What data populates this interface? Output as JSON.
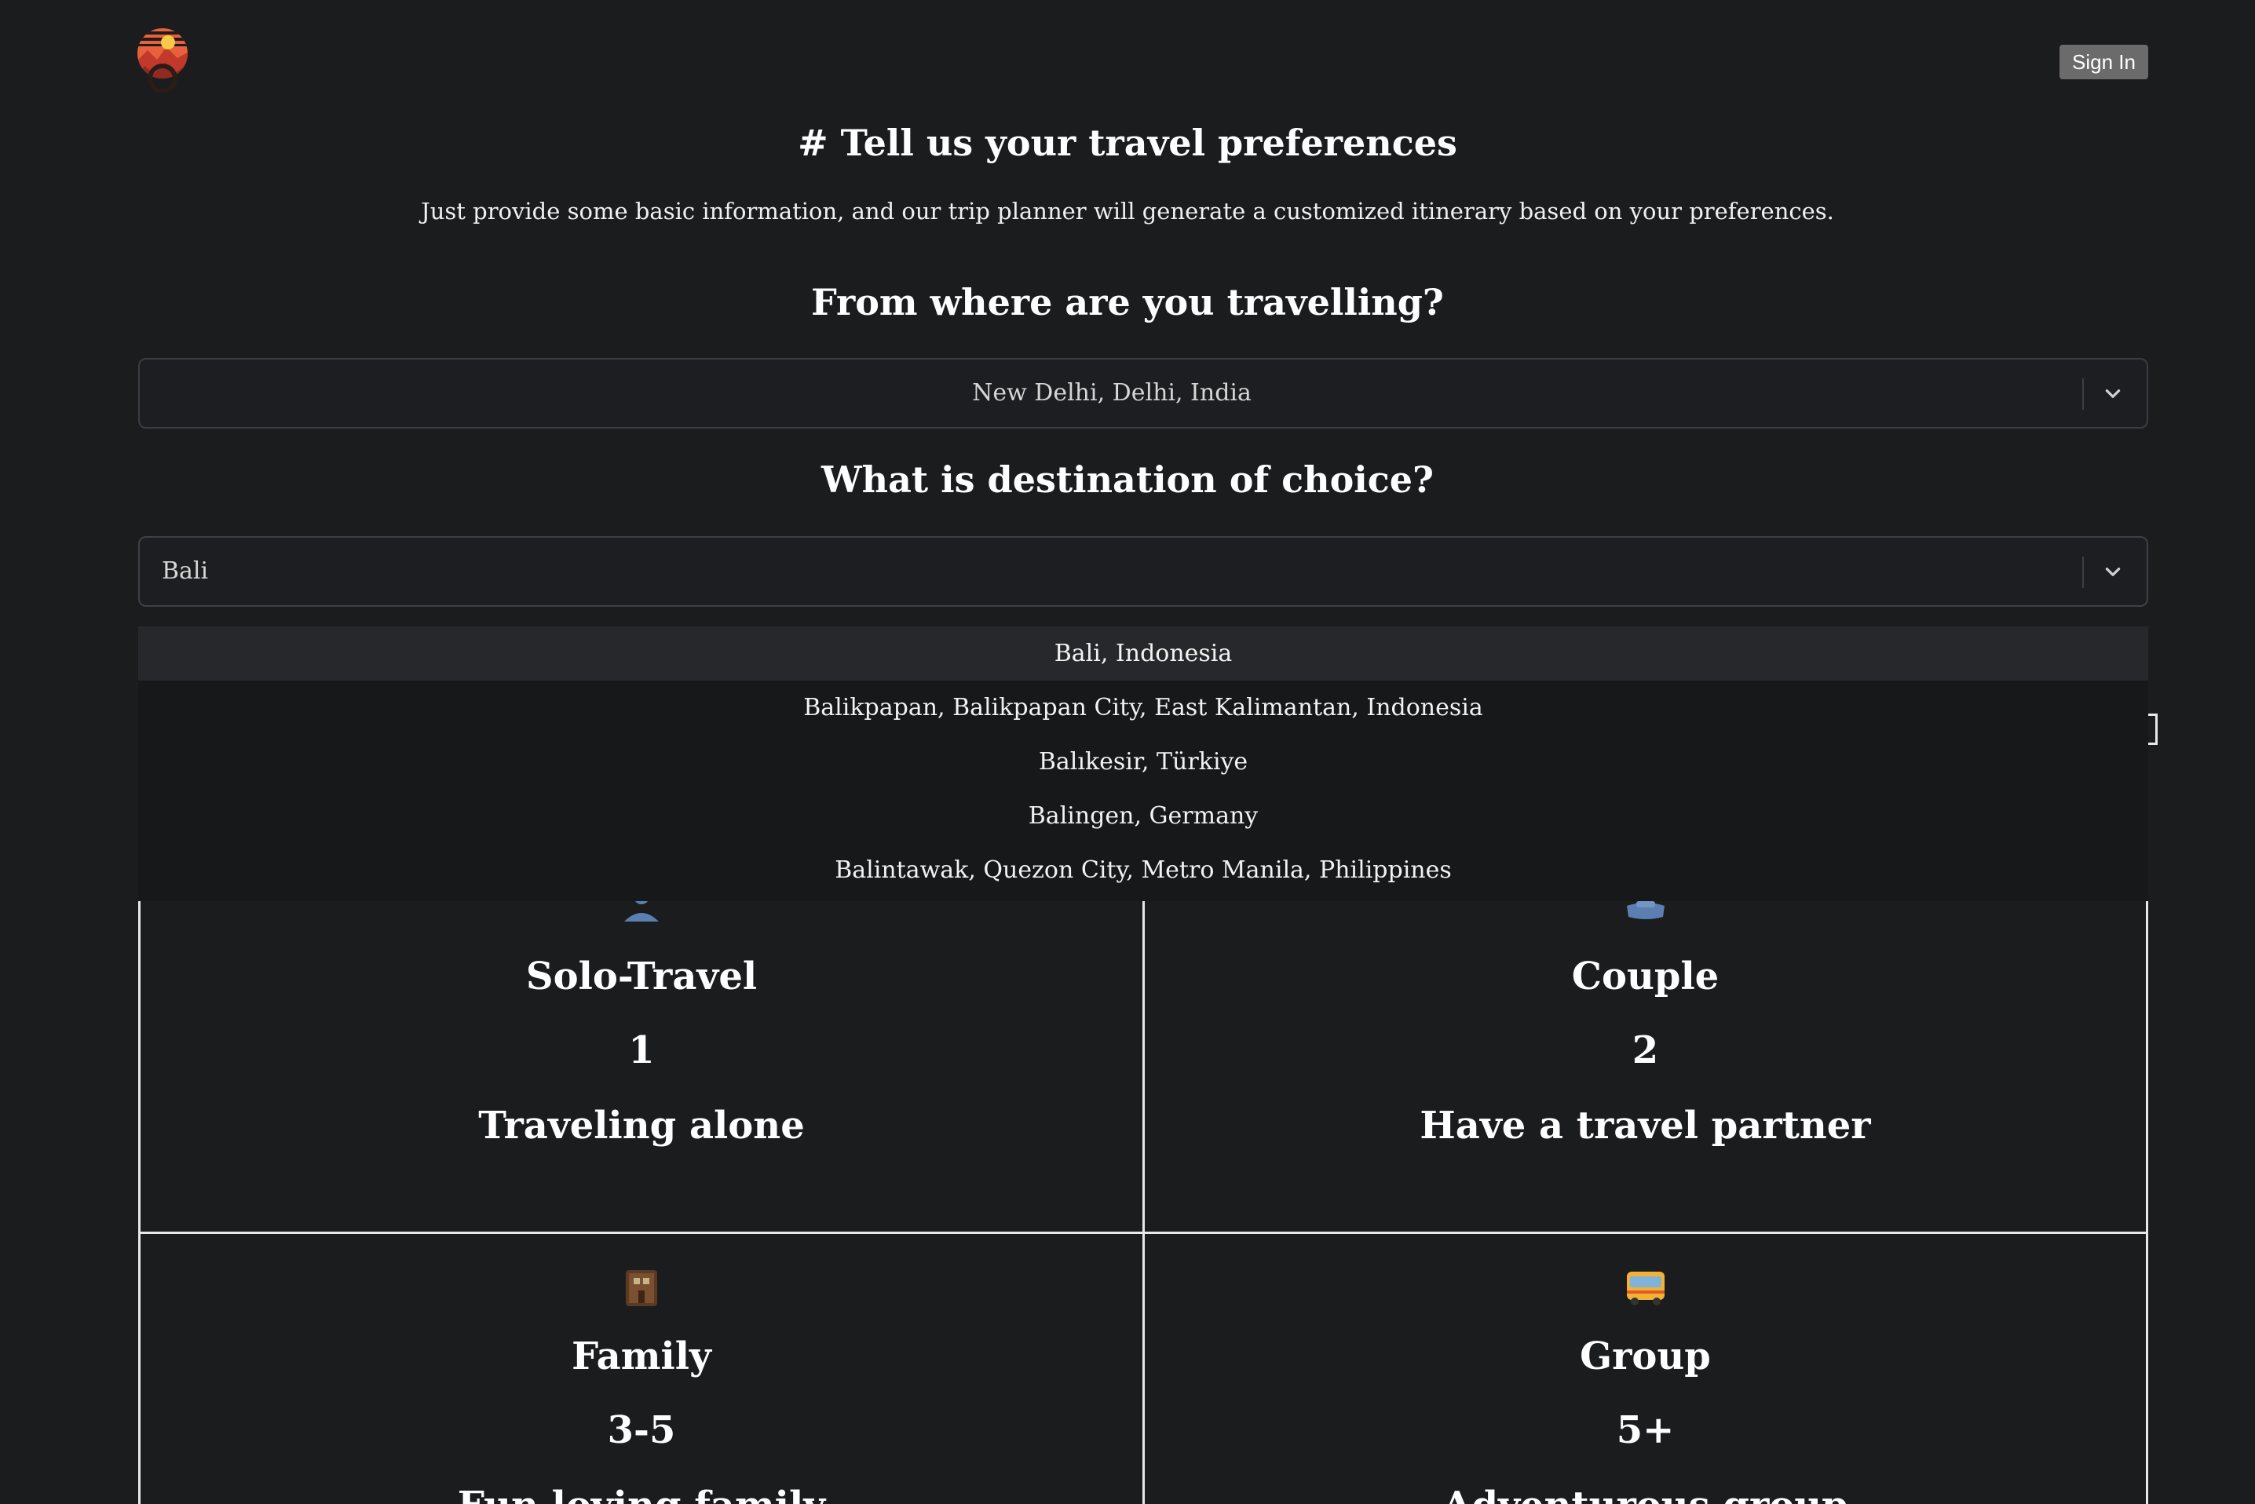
{
  "header": {
    "sign_in_label": "Sign In",
    "logo_icon": "sunset-mountain-logo-icon"
  },
  "intro": {
    "title": "# Tell us your travel preferences",
    "subtitle": "Just provide some basic information, and our trip planner will generate a customized itinerary based on your preferences."
  },
  "origin": {
    "question": "From where are you travelling?",
    "value": "New Delhi, Delhi, India"
  },
  "destination": {
    "question": "What is destination of choice?",
    "value": "Bali",
    "options": [
      "Bali, Indonesia",
      "Balikpapan, Balikpapan City, East Kalimantan, Indonesia",
      "Balıkesir, Türkiye",
      "Balingen, Germany",
      "Balintawak, Quezon City, Metro Manila, Philippines"
    ],
    "highlighted_index": 0
  },
  "travelers": [
    {
      "title": "Solo-Travel",
      "count": "1",
      "desc": "Traveling alone",
      "icon": "person-icon"
    },
    {
      "title": "Couple",
      "count": "2",
      "desc": "Have a travel partner",
      "icon": "boat-icon"
    },
    {
      "title": "Family",
      "count": "3-5",
      "desc": "Fun loving family",
      "icon": "house-icon"
    },
    {
      "title": "Group",
      "count": "5+",
      "desc": "Adventurous group",
      "icon": "bus-icon"
    }
  ],
  "colors": {
    "background": "#1b1c1e",
    "border": "#e8e8e8",
    "button": "#6b6b6b"
  }
}
